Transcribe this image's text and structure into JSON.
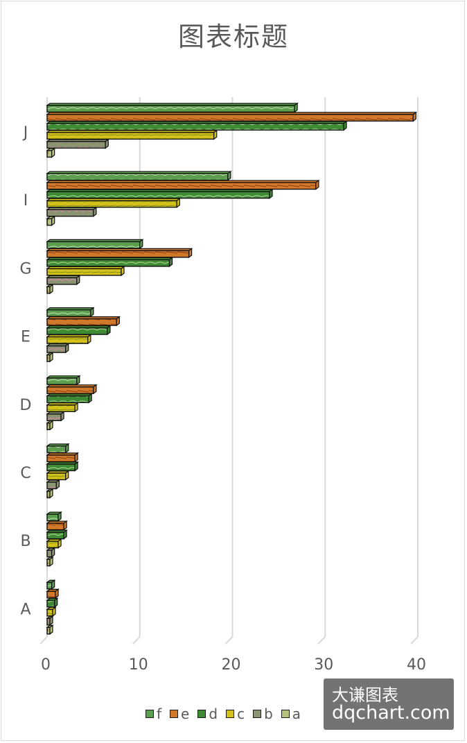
{
  "chart_data": {
    "type": "bar",
    "orientation": "horizontal",
    "title": "图表标题",
    "categories": [
      "A",
      "B",
      "C",
      "D",
      "E",
      "G",
      "I",
      "J"
    ],
    "series": [
      {
        "name": "a",
        "values": [
          0.3,
          0.3,
          0.3,
          0.3,
          0.3,
          0.3,
          0.5,
          0.5
        ]
      },
      {
        "name": "b",
        "values": [
          0.3,
          0.5,
          1.0,
          1.5,
          2.0,
          3.2,
          5.0,
          6.3
        ]
      },
      {
        "name": "c",
        "values": [
          0.6,
          1.2,
          2.0,
          3.0,
          4.4,
          8.0,
          14.0,
          18.0
        ]
      },
      {
        "name": "d",
        "values": [
          0.8,
          1.8,
          3.0,
          4.5,
          6.5,
          13.2,
          24.0,
          32.0
        ]
      },
      {
        "name": "e",
        "values": [
          0.9,
          1.8,
          3.0,
          5.0,
          7.5,
          15.3,
          29.0,
          39.5
        ]
      },
      {
        "name": "f",
        "values": [
          0.5,
          1.2,
          2.0,
          3.2,
          4.7,
          10.0,
          19.5,
          26.7
        ]
      }
    ],
    "xlim": [
      0,
      40
    ],
    "xticks": [
      "0",
      "10",
      "20",
      "30",
      "40"
    ],
    "grid": true,
    "legend_position": "bottom",
    "colors": {
      "a": "#b5c27a",
      "b": "#8a9470",
      "c": "#d4c21a",
      "d": "#3f8a34",
      "e": "#d2782a",
      "f": "#5a9e4e"
    }
  },
  "legend": [
    {
      "label": "f",
      "color": "#5a9e4e"
    },
    {
      "label": "e",
      "color": "#d2782a"
    },
    {
      "label": "d",
      "color": "#3f8a34"
    },
    {
      "label": "c",
      "color": "#d4c21a"
    },
    {
      "label": "b",
      "color": "#8a9470"
    },
    {
      "label": "a",
      "color": "#b5c27a"
    }
  ],
  "watermark": {
    "line1": "大谦图表",
    "line2": "dqchart.com"
  }
}
